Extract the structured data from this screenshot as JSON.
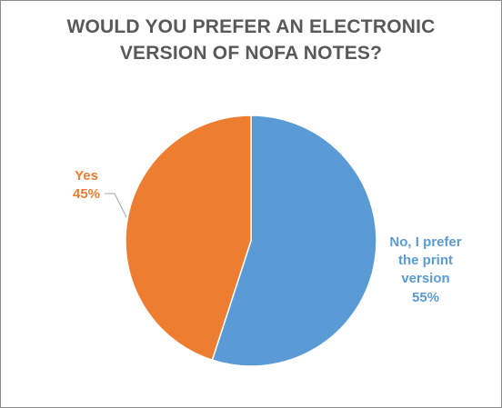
{
  "chart_data": {
    "type": "pie",
    "title_lines": [
      "WOULD YOU PREFER AN ELECTRONIC",
      "VERSION OF NOFA NOTES?"
    ],
    "slices": [
      {
        "label_lines": [
          "No, I prefer",
          "the print",
          "version"
        ],
        "percent_label": "55%",
        "value": 55,
        "color": "#5b9bd5"
      },
      {
        "label_lines": [
          "Yes"
        ],
        "percent_label": "45%",
        "value": 45,
        "color": "#ed7d31"
      }
    ],
    "start_angle_deg": 0,
    "direction": "clockwise",
    "legend": "none",
    "data_labels": "outside"
  }
}
